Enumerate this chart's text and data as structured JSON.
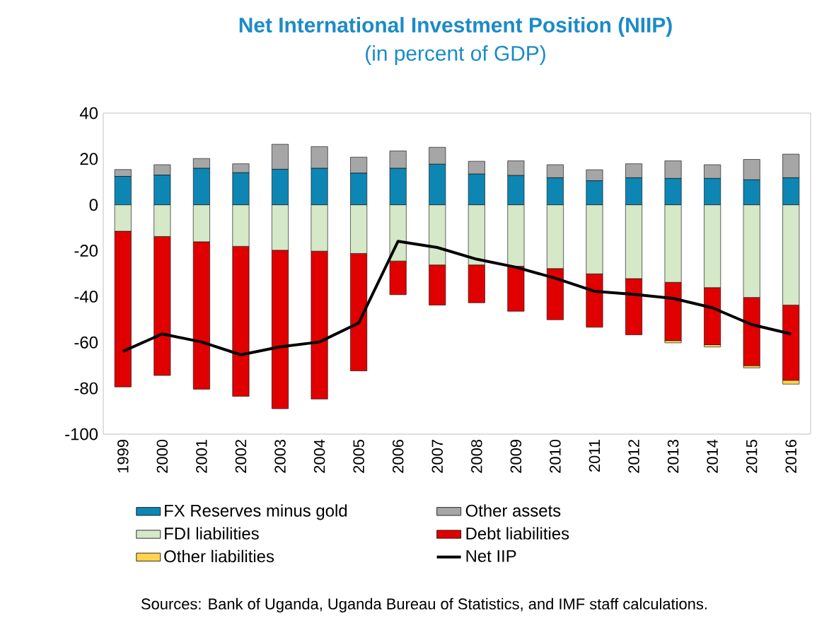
{
  "chart_data": {
    "type": "bar",
    "stacked": true,
    "title": "Net International Investment Position (NIIP)",
    "subtitle": "(in percent of GDP)",
    "categories": [
      "1999",
      "2000",
      "2001",
      "2002",
      "2003",
      "2004",
      "2005",
      "2006",
      "2007",
      "2008",
      "2009",
      "2010",
      "2011",
      "2012",
      "2013",
      "2014",
      "2015",
      "2016"
    ],
    "series": [
      {
        "name": "FX Reserves minus gold",
        "color": "#0e86b4",
        "values": [
          12.4,
          13,
          15.9,
          14,
          15.5,
          15.9,
          13.8,
          15.9,
          17.7,
          13.4,
          12.8,
          11.8,
          10.5,
          11.8,
          11.5,
          11.5,
          10.9,
          11.8
        ]
      },
      {
        "name": "Other assets",
        "color": "#a6a6a6",
        "values": [
          3,
          4.5,
          4.3,
          3.9,
          10.9,
          9.5,
          7,
          7.6,
          7.4,
          5.6,
          6.4,
          5.7,
          4.8,
          6.1,
          7.7,
          6,
          8.9,
          10.3
        ]
      },
      {
        "name": "FDI liabilities",
        "color": "#d5e8c8",
        "values": [
          -11.5,
          -13.8,
          -16.1,
          -18.1,
          -19.8,
          -20.2,
          -21.2,
          -24.5,
          -26.2,
          -26.2,
          -26.8,
          -27.8,
          -30.1,
          -32.2,
          -33.8,
          -36.1,
          -40.4,
          -43.7
        ]
      },
      {
        "name": "Debt liabilities",
        "color": "#e00000",
        "values": [
          -67.9,
          -60.6,
          -64.3,
          -65.4,
          -69.1,
          -64.5,
          -51.2,
          -14.7,
          -17.5,
          -16.5,
          -19.6,
          -22.3,
          -23.3,
          -24.5,
          -25.4,
          -24.9,
          -29.7,
          -32.8
        ]
      },
      {
        "name": "Other liabilities",
        "color": "#ffd34d",
        "values": [
          0,
          0,
          0,
          0,
          0,
          0,
          0,
          0,
          0,
          0,
          0,
          0,
          0,
          0,
          -1,
          -1,
          -1,
          -1.7
        ]
      },
      {
        "name": "Net IIP",
        "type": "line",
        "color": "#000000",
        "values": [
          -63.9,
          -56.3,
          -59.8,
          -65.4,
          -61.9,
          -59.8,
          -51.5,
          -15.9,
          -18.6,
          -23.7,
          -27.2,
          -32,
          -37.7,
          -39,
          -40.8,
          -44.9,
          -52.2,
          -56.3
        ]
      }
    ],
    "ylim": [
      -100,
      40
    ],
    "yticks": [
      -100,
      -80,
      -60,
      -40,
      -20,
      0,
      20,
      40
    ],
    "legend": "bottom",
    "annotations": [
      "Sources: Bank of Uganda, Uganda Bureau of Statistics, and IMF staff calculations."
    ]
  }
}
